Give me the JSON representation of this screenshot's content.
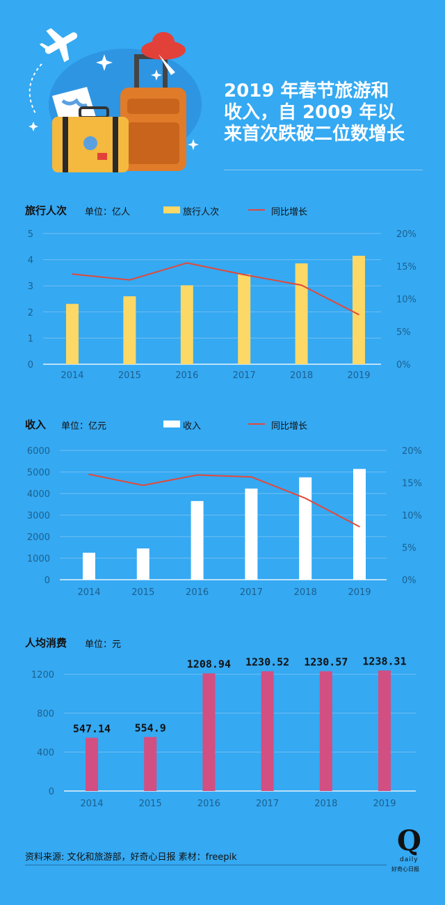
{
  "header": {
    "title": "2019 年春节旅游和\n收入，自 2009 年以\n来首次跌破二位数增长"
  },
  "colors": {
    "background": "#35a9f2",
    "bar_trips": "#fcd866",
    "bar_income": "#ffffff",
    "bar_spending": "#d24f82",
    "line": "#e2493a"
  },
  "sections": {
    "trips": {
      "title": "旅行人次",
      "unit": "单位：亿人",
      "legend_bar": "旅行人次",
      "legend_line": "同比增长"
    },
    "income": {
      "title": "收入",
      "unit": "单位：亿元",
      "legend_bar": "收入",
      "legend_line": "同比增长"
    },
    "spending": {
      "title": "人均消费",
      "unit": "单位：元"
    }
  },
  "chart_data": [
    {
      "type": "bar",
      "categories": [
        "2014",
        "2015",
        "2016",
        "2017",
        "2018",
        "2019"
      ],
      "series": [
        {
          "name": "旅行人次",
          "type": "bar",
          "axis": "left",
          "values": [
            2.31,
            2.6,
            3.02,
            3.44,
            3.86,
            4.15
          ]
        },
        {
          "name": "同比增长",
          "type": "line",
          "axis": "right",
          "values": [
            13.8,
            12.9,
            15.5,
            13.7,
            12.1,
            7.6
          ]
        }
      ],
      "ylim": [
        0,
        5
      ],
      "yticks": [
        "0",
        "1",
        "2",
        "3",
        "4",
        "5"
      ],
      "y2lim": [
        0,
        20
      ],
      "y2ticks": [
        "0%",
        "5%",
        "10%",
        "15%",
        "20%"
      ],
      "legend": "top"
    },
    {
      "type": "bar",
      "categories": [
        "2014",
        "2015",
        "2016",
        "2017",
        "2018",
        "2019"
      ],
      "series": [
        {
          "name": "收入",
          "type": "bar",
          "axis": "left",
          "values": [
            1250,
            1450,
            3650,
            4230,
            4750,
            5140
          ]
        },
        {
          "name": "同比增长",
          "type": "line",
          "axis": "right",
          "values": [
            16.3,
            14.6,
            16.2,
            15.9,
            12.6,
            8.2
          ]
        }
      ],
      "ylim": [
        0,
        6000
      ],
      "yticks": [
        "0",
        "1000",
        "2000",
        "3000",
        "4000",
        "5000",
        "6000"
      ],
      "y2lim": [
        0,
        20
      ],
      "y2ticks": [
        "0%",
        "5%",
        "10%",
        "15%",
        "20%"
      ],
      "legend": "top"
    },
    {
      "type": "bar",
      "categories": [
        "2014",
        "2015",
        "2016",
        "2017",
        "2018",
        "2019"
      ],
      "series": [
        {
          "name": "人均消费",
          "values": [
            547.14,
            554.9,
            1208.94,
            1230.52,
            1230.57,
            1238.31
          ]
        }
      ],
      "labels": [
        "547.14",
        "554.9",
        "1208.94",
        "1230.52",
        "1230.57",
        "1238.31"
      ],
      "ylim": [
        0,
        1200
      ],
      "yticks": [
        "0",
        "400",
        "800",
        "1200"
      ]
    }
  ],
  "footer": {
    "source": "资料来源: 文化和旅游部，好奇心日报    素材：freepik",
    "logo_letter": "Q",
    "logo_word": "daily",
    "logo_sub": "好奇心日报"
  }
}
